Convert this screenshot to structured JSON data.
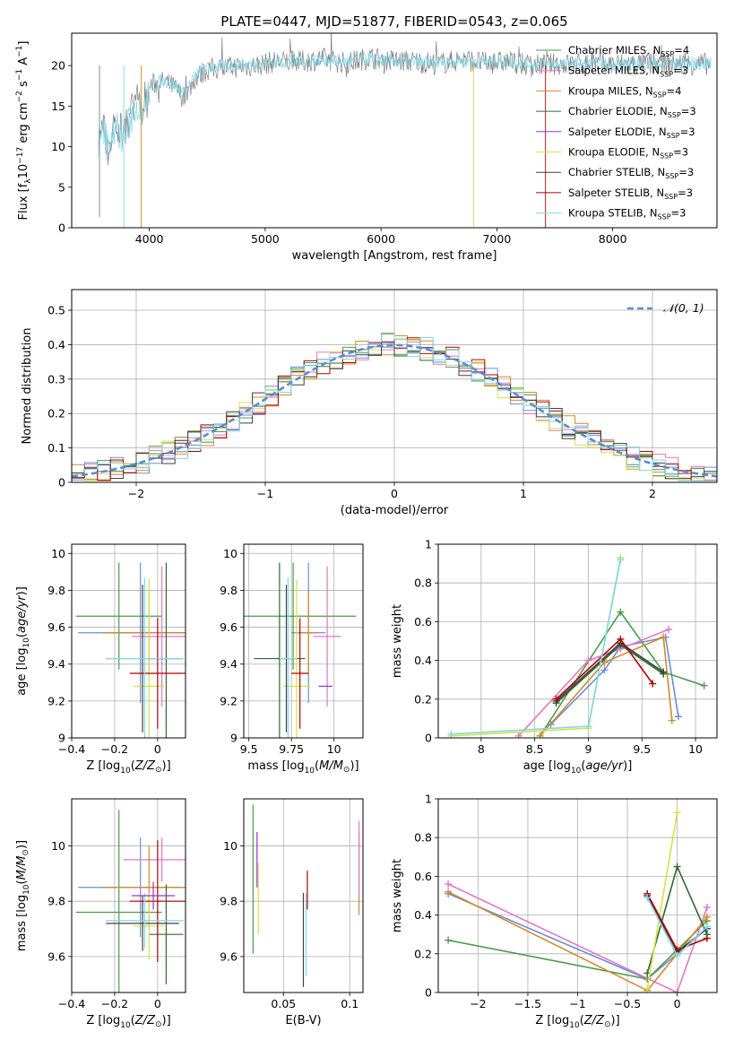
{
  "figure_title": "PLATE=0447, MJD=51877, FIBERID=0543, z=0.065",
  "legend_entries": [
    {
      "label": "Chabrier MILES, N",
      "sub": "SSP",
      "tail": "=4",
      "color": "#4c9a4c"
    },
    {
      "label": "Salpeter MILES, N",
      "sub": "SSP",
      "tail": "=3",
      "color": "#e377c2"
    },
    {
      "label": "Kroupa MILES, N",
      "sub": "SSP",
      "tail": "=4",
      "color": "#d28a28"
    },
    {
      "label": "Chabrier ELODIE, N",
      "sub": "SSP",
      "tail": "=3",
      "color": "#2e6b2e"
    },
    {
      "label": "Salpeter ELODIE, N",
      "sub": "SSP",
      "tail": "=3",
      "color": "#9b30d0"
    },
    {
      "label": "Kroupa ELODIE, N",
      "sub": "SSP",
      "tail": "=3",
      "color": "#d8e04a"
    },
    {
      "label": "Chabrier STELIB, N",
      "sub": "SSP",
      "tail": "=3",
      "color": "#404040"
    },
    {
      "label": "Salpeter STELIB, N",
      "sub": "SSP",
      "tail": "=3",
      "color": "#b00000"
    },
    {
      "label": "Kroupa STELIB, N",
      "sub": "SSP",
      "tail": "=3",
      "color": "#7fd8e8"
    }
  ],
  "chart_data": [
    {
      "type": "line",
      "id": "spectrum",
      "xlabel": "wavelength [Angstrom, rest frame]",
      "ylabel": "Flux [f_λ10^-17 erg cm^-2 s^-1 A^-1]",
      "xlim": [
        3330,
        8900
      ],
      "ylim": [
        0,
        24
      ],
      "xticks": [
        4000,
        5000,
        6000,
        7000,
        8000
      ],
      "yticks": [
        0,
        5,
        10,
        15,
        20
      ],
      "grid": false,
      "legend": "right",
      "series": [
        {
          "name": "data",
          "color": "#7f7f7f",
          "x": [
            3560,
            3600,
            3650,
            3700,
            3750,
            3800,
            3850,
            3900,
            3950,
            4000,
            4100,
            4200,
            4300,
            4400,
            4500,
            4700,
            4900,
            5100,
            5300,
            5500,
            5700,
            5900,
            6100,
            6300,
            6500,
            6700,
            6900,
            7100,
            7300,
            7500
          ],
          "y": [
            10.0,
            12.5,
            9.5,
            13.0,
            11.5,
            12.5,
            14.0,
            16.0,
            14.5,
            17.5,
            18.0,
            17.5,
            16.0,
            18.5,
            19.5,
            19.8,
            20.0,
            20.5,
            20.5,
            20.8,
            20.3,
            21.0,
            20.6,
            20.5,
            20.2,
            20.8,
            20.3,
            20.5,
            20.0,
            20.2
          ]
        },
        {
          "name": "model",
          "color": "#7fd8e8",
          "x": [
            3560,
            3600,
            3650,
            3700,
            3750,
            3800,
            3850,
            3900,
            3950,
            4000,
            4100,
            4200,
            4300,
            4400,
            4500,
            4700,
            4900,
            5100,
            5300,
            5500,
            5700,
            5900,
            6100,
            6300,
            6500,
            6700,
            6900,
            7100,
            7300,
            7500
          ],
          "y": [
            9.5,
            12.0,
            10.0,
            12.5,
            11.0,
            12.2,
            13.5,
            15.5,
            14.8,
            17.0,
            18.2,
            17.8,
            16.5,
            18.8,
            19.7,
            20.0,
            20.2,
            20.4,
            20.6,
            20.7,
            20.5,
            20.8,
            20.5,
            20.4,
            20.3,
            20.6,
            20.4,
            20.5,
            20.2,
            20.2
          ]
        }
      ]
    },
    {
      "type": "line",
      "id": "residuals",
      "xlabel": "(data-model)/error",
      "ylabel": "Normed distribution",
      "xlim": [
        -2.5,
        2.5
      ],
      "ylim": [
        0,
        0.56
      ],
      "xticks": [
        -2,
        -1,
        0,
        1,
        2
      ],
      "yticks": [
        0.0,
        0.1,
        0.2,
        0.3,
        0.4,
        0.5
      ],
      "grid": true,
      "legend": "top-right",
      "legend_label": "𝒩(0, 1)",
      "normal_curve": {
        "mu": 0,
        "sigma": 1
      }
    },
    {
      "type": "scatter",
      "id": "age_vs_Z",
      "xlabel": "Z [log10(Z/Z⊙)]",
      "ylabel": "age [log10(age/yr)]",
      "xlim": [
        -0.4,
        0.13
      ],
      "ylim": [
        9.0,
        10.05
      ],
      "xticks": [
        -0.4,
        -0.2,
        0.0
      ],
      "yticks": [
        9.0,
        9.2,
        9.4,
        9.6,
        9.8,
        10.0
      ],
      "grid": true,
      "points": [
        {
          "x": -0.08,
          "y": 9.57,
          "xerr": 0.29,
          "yerr": 0.38,
          "color": "#6a8fd8"
        },
        {
          "x": -0.18,
          "y": 9.66,
          "xerr": 0.2,
          "yerr": 0.29,
          "color": "#4c9a4c"
        },
        {
          "x": 0.02,
          "y": 9.55,
          "xerr": 0.14,
          "yerr": 0.38,
          "color": "#e377c2"
        },
        {
          "x": -0.04,
          "y": 9.57,
          "xerr": 0.22,
          "yerr": 0.23,
          "color": "#d28a28"
        },
        {
          "x": 0.04,
          "y": 9.43,
          "xerr": 0.08,
          "yerr": 0.52,
          "color": "#2e6b2e"
        },
        {
          "x": -0.04,
          "y": 9.28,
          "xerr": 0.07,
          "yerr": 0.58,
          "color": "#d8e04a"
        },
        {
          "x": -0.07,
          "y": 9.43,
          "xerr": 0.17,
          "yerr": 0.4,
          "color": "#404040"
        },
        {
          "x": 0.0,
          "y": 9.35,
          "xerr": 0.13,
          "yerr": 0.3,
          "color": "#b00000"
        },
        {
          "x": -0.06,
          "y": 9.43,
          "xerr": 0.18,
          "yerr": 0.44,
          "color": "#7fd8e8"
        }
      ]
    },
    {
      "type": "scatter",
      "id": "age_vs_mass",
      "xlabel": "mass [log10(M/M⊙)]",
      "ylabel": "",
      "xlim": [
        9.47,
        10.17
      ],
      "ylim": [
        9.0,
        10.05
      ],
      "xticks": [
        9.5,
        9.75,
        10.0
      ],
      "yticks": [
        9.0,
        9.2,
        9.4,
        9.6,
        9.8,
        10.0
      ],
      "grid": true,
      "points": [
        {
          "x": 9.85,
          "y": 9.57,
          "xerr": 0.1,
          "yerr": 0.38,
          "color": "#6a8fd8"
        },
        {
          "x": 9.76,
          "y": 9.66,
          "xerr": 0.37,
          "yerr": 0.29,
          "color": "#4c9a4c"
        },
        {
          "x": 9.96,
          "y": 9.55,
          "xerr": 0.08,
          "yerr": 0.38,
          "color": "#e377c2"
        },
        {
          "x": 9.85,
          "y": 9.57,
          "xerr": 0.05,
          "yerr": 0.23,
          "color": "#d28a28"
        },
        {
          "x": 9.68,
          "y": 9.43,
          "xerr": 0.15,
          "yerr": 0.52,
          "color": "#2e6b2e"
        },
        {
          "x": 9.78,
          "y": 9.28,
          "xerr": 0.08,
          "yerr": 0.58,
          "color": "#d8e04a"
        },
        {
          "x": 9.72,
          "y": 9.43,
          "xerr": 0.05,
          "yerr": 0.4,
          "color": "#404040"
        },
        {
          "x": 9.8,
          "y": 9.35,
          "xerr": 0.05,
          "yerr": 0.3,
          "color": "#b00000"
        },
        {
          "x": 9.73,
          "y": 9.43,
          "xerr": 0.05,
          "yerr": 0.44,
          "color": "#7fd8e8"
        },
        {
          "x": 9.95,
          "y": 9.28,
          "xerr": 0.04,
          "yerr": 0.0,
          "color": "#9b30d0"
        }
      ]
    },
    {
      "type": "line",
      "id": "massweight_vs_age",
      "xlabel": "age [log10(age/yr)]",
      "ylabel": "mass weight",
      "xlim": [
        7.6,
        10.2
      ],
      "ylim": [
        0,
        1.0
      ],
      "xticks": [
        8.0,
        8.5,
        9.0,
        9.5,
        10.0
      ],
      "yticks": [
        0.0,
        0.2,
        0.4,
        0.6,
        0.8,
        1.0
      ],
      "grid": true,
      "series": [
        {
          "color": "#6a8fd8",
          "x": [
            8.65,
            9.15,
            9.3,
            9.72,
            9.84
          ],
          "y": [
            0.07,
            0.35,
            0.47,
            0.52,
            0.11
          ]
        },
        {
          "color": "#4c9a4c",
          "x": [
            8.55,
            9.3,
            9.7,
            10.08
          ],
          "y": [
            0.01,
            0.65,
            0.34,
            0.27
          ]
        },
        {
          "color": "#e377c2",
          "x": [
            8.35,
            9.0,
            9.3,
            9.75
          ],
          "y": [
            0.01,
            0.4,
            0.46,
            0.56
          ]
        },
        {
          "color": "#d28a28",
          "x": [
            8.55,
            9.15,
            9.7,
            9.78
          ],
          "y": [
            0.01,
            0.39,
            0.52,
            0.09
          ]
        },
        {
          "color": "#2e6b2e",
          "x": [
            8.7,
            9.3,
            9.7
          ],
          "y": [
            0.18,
            0.48,
            0.33
          ]
        },
        {
          "color": "#d8e04a",
          "x": [
            7.72,
            9.0,
            9.3
          ],
          "y": [
            0.01,
            0.05,
            0.93
          ]
        },
        {
          "color": "#404040",
          "x": [
            8.7,
            9.3,
            9.7
          ],
          "y": [
            0.19,
            0.49,
            0.34
          ]
        },
        {
          "color": "#b00000",
          "x": [
            8.7,
            9.3,
            9.6
          ],
          "y": [
            0.2,
            0.51,
            0.28
          ]
        },
        {
          "color": "#7fd8e8",
          "x": [
            7.72,
            9.0,
            9.3
          ],
          "y": [
            0.02,
            0.06,
            0.92
          ]
        }
      ]
    },
    {
      "type": "scatter",
      "id": "mass_vs_Z",
      "xlabel": "Z [log10(Z/Z⊙)]",
      "ylabel": "mass [log10(M/M⊙)]",
      "xlim": [
        -0.4,
        0.13
      ],
      "ylim": [
        9.47,
        10.17
      ],
      "xticks": [
        -0.4,
        -0.2,
        0.0
      ],
      "yticks": [
        9.6,
        9.8,
        10.0
      ],
      "grid": true,
      "points": [
        {
          "x": -0.08,
          "y": 9.85,
          "xerr": 0.29,
          "yerr": 0.18,
          "color": "#6a8fd8"
        },
        {
          "x": -0.18,
          "y": 9.76,
          "xerr": 0.2,
          "yerr": 0.37,
          "color": "#4c9a4c"
        },
        {
          "x": 0.02,
          "y": 9.95,
          "xerr": 0.18,
          "yerr": 0.08,
          "color": "#e377c2"
        },
        {
          "x": -0.04,
          "y": 9.85,
          "xerr": 0.22,
          "yerr": 0.15,
          "color": "#d28a28"
        },
        {
          "x": 0.04,
          "y": 9.68,
          "xerr": 0.08,
          "yerr": 0.18,
          "color": "#2e6b2e"
        },
        {
          "x": -0.04,
          "y": 9.71,
          "xerr": 0.07,
          "yerr": 0.12,
          "color": "#d8e04a"
        },
        {
          "x": -0.07,
          "y": 9.72,
          "xerr": 0.17,
          "yerr": 0.1,
          "color": "#404040"
        },
        {
          "x": 0.0,
          "y": 9.8,
          "xerr": 0.13,
          "yerr": 0.22,
          "color": "#b00000"
        },
        {
          "x": -0.06,
          "y": 9.73,
          "xerr": 0.18,
          "yerr": 0.1,
          "color": "#7fd8e8"
        },
        {
          "x": -0.02,
          "y": 9.82,
          "xerr": 0.1,
          "yerr": 0.05,
          "color": "#9b30d0"
        }
      ]
    },
    {
      "type": "scatter",
      "id": "mass_vs_ebv",
      "xlabel": "E(B-V)",
      "ylabel": "",
      "xlim": [
        0.02,
        0.11
      ],
      "ylim": [
        9.47,
        10.17
      ],
      "xticks": [
        0.05,
        0.1
      ],
      "yticks": [
        9.6,
        9.8,
        10.0
      ],
      "grid": true,
      "points": [
        {
          "x": 0.027,
          "y": 9.88,
          "xerr": 0.0,
          "yerr": 0.27,
          "color": "#4c9a4c"
        },
        {
          "x": 0.03,
          "y": 9.95,
          "xerr": 0.0,
          "yerr": 0.1,
          "color": "#9b30d0"
        },
        {
          "x": 0.031,
          "y": 9.81,
          "xerr": 0.0,
          "yerr": 0.13,
          "color": "#d8e04a"
        },
        {
          "x": 0.065,
          "y": 9.66,
          "xerr": 0.0,
          "yerr": 0.17,
          "color": "#404040"
        },
        {
          "x": 0.067,
          "y": 9.68,
          "xerr": 0.0,
          "yerr": 0.15,
          "color": "#7fd8e8"
        },
        {
          "x": 0.068,
          "y": 9.84,
          "xerr": 0.0,
          "yerr": 0.07,
          "color": "#b00000"
        },
        {
          "x": 0.107,
          "y": 9.9,
          "xerr": 0.0,
          "yerr": 0.15,
          "color": "#d28a28"
        },
        {
          "x": 0.107,
          "y": 9.95,
          "xerr": 0.0,
          "yerr": 0.14,
          "color": "#e377c2"
        }
      ]
    },
    {
      "type": "line",
      "id": "massweight_vs_Z",
      "xlabel": "Z [log10(Z/Z⊙)]",
      "ylabel": "mass weight",
      "xlim": [
        -2.4,
        0.4
      ],
      "ylim": [
        0,
        1.0
      ],
      "xticks": [
        -2.0,
        -1.5,
        -1.0,
        -0.5,
        0.0
      ],
      "yticks": [
        0.0,
        0.2,
        0.4,
        0.6,
        0.8,
        1.0
      ],
      "grid": true,
      "series": [
        {
          "color": "#6a8fd8",
          "x": [
            -2.3,
            -0.3,
            0.0,
            0.3
          ],
          "y": [
            0.51,
            0.07,
            0.2,
            0.33
          ]
        },
        {
          "color": "#4c9a4c",
          "x": [
            -2.3,
            -0.3,
            0.0,
            0.3
          ],
          "y": [
            0.27,
            0.07,
            0.22,
            0.37
          ]
        },
        {
          "color": "#e377c2",
          "x": [
            -2.3,
            0.0,
            0.3
          ],
          "y": [
            0.56,
            0.0,
            0.44
          ]
        },
        {
          "color": "#d28a28",
          "x": [
            -2.3,
            -0.3,
            0.0,
            0.3
          ],
          "y": [
            0.52,
            0.01,
            0.2,
            0.39
          ]
        },
        {
          "color": "#2e6b2e",
          "x": [
            -0.3,
            0.0,
            0.3
          ],
          "y": [
            0.1,
            0.65,
            0.3
          ]
        },
        {
          "color": "#d8e04a",
          "x": [
            -0.3,
            0.0
          ],
          "y": [
            0.02,
            0.93
          ]
        },
        {
          "color": "#404040",
          "x": [
            -0.3,
            0.0,
            0.3
          ],
          "y": [
            0.5,
            0.21,
            0.33
          ]
        },
        {
          "color": "#b00000",
          "x": [
            -0.3,
            0.0,
            0.3
          ],
          "y": [
            0.51,
            0.22,
            0.28
          ]
        },
        {
          "color": "#7fd8e8",
          "x": [
            -0.3,
            0.0,
            0.3
          ],
          "y": [
            0.49,
            0.19,
            0.34
          ]
        }
      ]
    }
  ]
}
